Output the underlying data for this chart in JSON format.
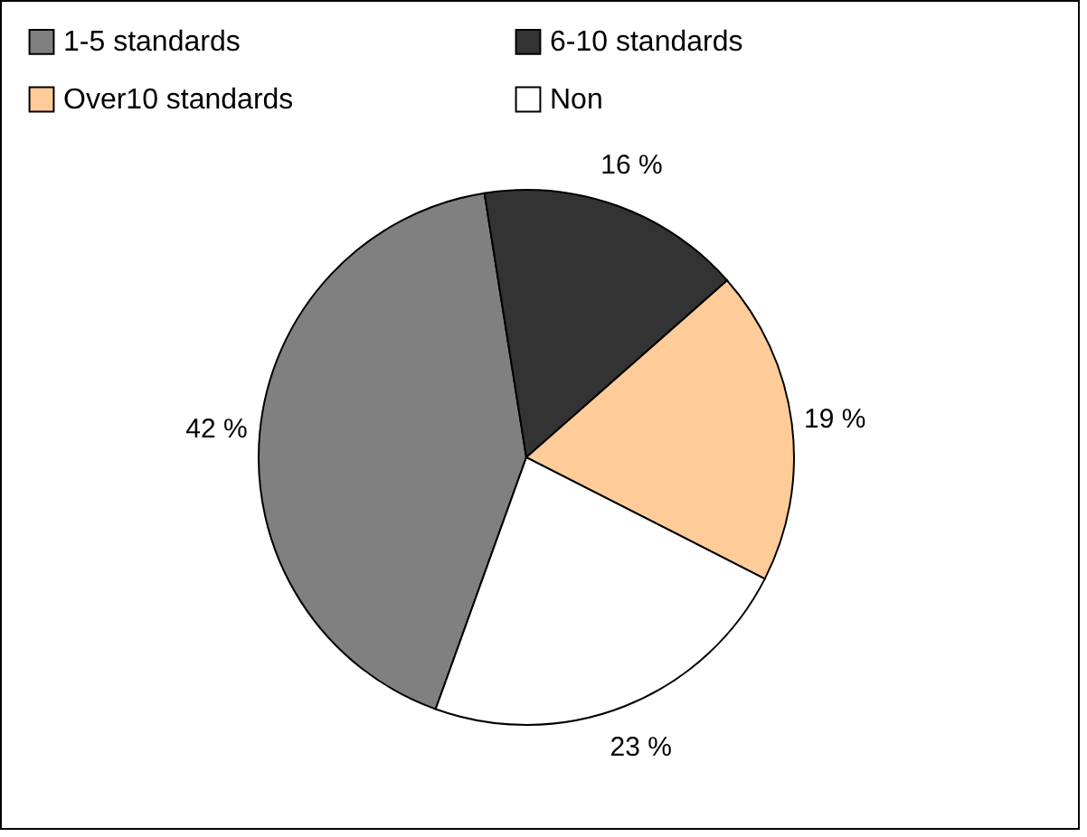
{
  "chart_data": {
    "type": "pie",
    "categories": [
      "1-5 standards",
      "6-10 standards",
      "Over10 standards",
      "Non"
    ],
    "values": [
      42,
      16,
      19,
      23
    ],
    "colors": [
      "#808080",
      "#333333",
      "#ffcc99",
      "#ffffff"
    ],
    "value_labels": [
      "42 %",
      "16 %",
      "19 %",
      "23 %"
    ],
    "legend": "top"
  }
}
